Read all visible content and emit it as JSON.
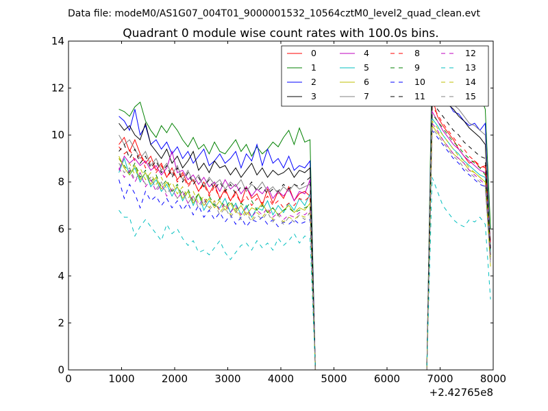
{
  "chart_data": {
    "type": "line",
    "suptitle": "Data file: modeM0/AS1G07_004T01_9000001532_10564cztM0_level2_quad_clean.evt",
    "title": "Quadrant 0 module wise count rates with 100.0s bins.",
    "xlabel": "",
    "ylabel": "",
    "xlim": [
      0,
      8000
    ],
    "ylim": [
      0,
      14
    ],
    "x_offset_label": "+2.42765e8",
    "xticks": [
      0,
      1000,
      2000,
      3000,
      4000,
      5000,
      6000,
      7000,
      8000
    ],
    "yticks": [
      0,
      2,
      4,
      6,
      8,
      10,
      12,
      14
    ],
    "grid": false,
    "legend": {
      "location": "top-right",
      "columns": 4
    },
    "x": [
      950,
      1050,
      1150,
      1250,
      1350,
      1450,
      1550,
      1650,
      1750,
      1850,
      1950,
      2050,
      2150,
      2250,
      2350,
      2450,
      2550,
      2650,
      2750,
      2850,
      2950,
      3050,
      3150,
      3250,
      3350,
      3450,
      3550,
      3650,
      3750,
      3850,
      3950,
      4050,
      4150,
      4250,
      4350,
      4450,
      4550,
      4650,
      4750,
      4850,
      4950,
      5050,
      5150,
      5250,
      5350,
      5450,
      5550,
      5650,
      5750,
      5850,
      5950,
      6050,
      6150,
      6250,
      6350,
      6450,
      6550,
      6650,
      6750,
      6850,
      6950,
      7050,
      7150,
      7250,
      7350,
      7450,
      7550,
      7650,
      7750,
      7850,
      7950
    ],
    "series": [
      {
        "name": "0",
        "color": "#ff0000",
        "style": "solid",
        "values": [
          9.6,
          9.9,
          9.3,
          9.8,
          9.2,
          8.8,
          9.1,
          8.5,
          8.8,
          8.2,
          8.6,
          8.1,
          8.4,
          7.9,
          8.1,
          7.6,
          8.0,
          7.5,
          7.9,
          7.3,
          7.7,
          7.2,
          7.6,
          7.1,
          7.8,
          7.3,
          7.5,
          7.0,
          7.7,
          7.1,
          7.6,
          7.3,
          7.8,
          7.2,
          7.5,
          7.6,
          7.4,
          0,
          0,
          0,
          0,
          0,
          0,
          0,
          0,
          0,
          0,
          0,
          0,
          0,
          0,
          0,
          0,
          0,
          0,
          0,
          0,
          0,
          0,
          11.6,
          10.8,
          10.4,
          10.1,
          9.8,
          9.4,
          9.1,
          8.8,
          8.9,
          8.6,
          8.7,
          5.5
        ]
      },
      {
        "name": "1",
        "color": "#008000",
        "style": "solid",
        "values": [
          11.1,
          11.0,
          10.8,
          11.2,
          11.4,
          10.6,
          10.2,
          9.9,
          10.4,
          10.1,
          10.5,
          10.2,
          9.8,
          9.5,
          9.9,
          9.4,
          9.6,
          9.2,
          9.7,
          9.3,
          9.2,
          9.5,
          9.8,
          9.3,
          9.6,
          9.1,
          9.5,
          9.2,
          9.4,
          9.7,
          9.5,
          9.9,
          10.2,
          9.6,
          10.3,
          9.7,
          9.8,
          0,
          0,
          0,
          0,
          0,
          0,
          0,
          0,
          0,
          0,
          0,
          0,
          0,
          0,
          0,
          0,
          0,
          0,
          0,
          0,
          0,
          0,
          13.6,
          13.0,
          12.6,
          12.3,
          12.1,
          12.0,
          11.8,
          11.6,
          11.5,
          11.7,
          11.1,
          6.0
        ]
      },
      {
        "name": "2",
        "color": "#0000ff",
        "style": "solid",
        "values": [
          10.8,
          10.6,
          10.2,
          11.1,
          10.0,
          10.4,
          9.6,
          9.8,
          9.4,
          9.7,
          9.2,
          9.5,
          9.0,
          9.3,
          8.8,
          9.1,
          9.4,
          8.7,
          8.9,
          9.2,
          8.8,
          9.0,
          9.3,
          8.6,
          9.2,
          8.9,
          9.6,
          8.7,
          9.4,
          8.8,
          9.0,
          8.6,
          9.1,
          8.5,
          8.7,
          8.6,
          8.9,
          0,
          0,
          0,
          0,
          0,
          0,
          0,
          0,
          0,
          0,
          0,
          0,
          0,
          0,
          0,
          0,
          0,
          0,
          0,
          0,
          0,
          0,
          12.6,
          13.0,
          11.6,
          11.4,
          11.0,
          10.9,
          10.6,
          10.4,
          10.5,
          10.2,
          10.5,
          5.2
        ]
      },
      {
        "name": "3",
        "color": "#000000",
        "style": "solid",
        "values": [
          10.5,
          10.2,
          10.4,
          10.0,
          9.8,
          10.5,
          9.6,
          9.3,
          9.0,
          9.4,
          8.8,
          9.1,
          8.6,
          8.9,
          9.3,
          8.5,
          8.8,
          8.4,
          8.9,
          8.6,
          8.7,
          8.3,
          8.6,
          8.2,
          8.5,
          8.8,
          8.3,
          8.6,
          8.2,
          8.5,
          8.3,
          8.4,
          8.6,
          8.2,
          8.5,
          8.4,
          8.6,
          0,
          0,
          0,
          0,
          0,
          0,
          0,
          0,
          0,
          0,
          0,
          0,
          0,
          0,
          0,
          0,
          0,
          0,
          0,
          0,
          0,
          0,
          11.3,
          11.8,
          11.5,
          11.3,
          11.1,
          10.8,
          10.6,
          10.3,
          10.1,
          9.9,
          9.6,
          4.9
        ]
      },
      {
        "name": "4",
        "color": "#bf00bf",
        "style": "solid",
        "values": [
          8.5,
          9.1,
          8.8,
          9.0,
          8.7,
          8.9,
          8.5,
          8.7,
          8.3,
          8.6,
          9.3,
          8.4,
          8.5,
          8.1,
          8.3,
          7.9,
          8.2,
          7.8,
          8.0,
          7.6,
          8.1,
          7.7,
          7.9,
          7.5,
          7.8,
          7.4,
          7.7,
          7.5,
          7.8,
          7.3,
          7.6,
          7.4,
          7.7,
          7.2,
          7.6,
          7.5,
          8.1,
          0,
          0,
          0,
          0,
          0,
          0,
          0,
          0,
          0,
          0,
          0,
          0,
          0,
          0,
          0,
          0,
          0,
          0,
          0,
          0,
          0,
          0,
          11.0,
          10.6,
          10.2,
          9.9,
          9.6,
          9.4,
          9.1,
          8.9,
          8.7,
          8.5,
          8.4,
          5.4
        ]
      },
      {
        "name": "5",
        "color": "#00bfbf",
        "style": "solid",
        "values": [
          8.4,
          9.0,
          8.3,
          8.6,
          8.0,
          8.4,
          7.8,
          8.1,
          7.6,
          7.9,
          7.4,
          7.8,
          7.2,
          7.6,
          7.0,
          7.5,
          6.8,
          7.2,
          7.0,
          6.9,
          7.3,
          6.7,
          7.1,
          6.6,
          7.0,
          6.5,
          6.9,
          6.8,
          7.2,
          6.6,
          7.0,
          6.7,
          7.1,
          6.8,
          7.3,
          7.0,
          7.5,
          0,
          0,
          0,
          0,
          0,
          0,
          0,
          0,
          0,
          0,
          0,
          0,
          0,
          0,
          0,
          0,
          0,
          0,
          0,
          0,
          0,
          0,
          10.7,
          10.4,
          10.0,
          9.7,
          9.4,
          9.2,
          8.9,
          8.7,
          8.5,
          8.3,
          8.2,
          5.0
        ]
      },
      {
        "name": "6",
        "color": "#bfbf00",
        "style": "solid",
        "values": [
          9.1,
          8.6,
          8.3,
          8.7,
          8.1,
          8.4,
          7.9,
          8.2,
          7.7,
          8.0,
          7.6,
          7.8,
          7.3,
          7.6,
          7.1,
          7.5,
          7.0,
          7.3,
          6.9,
          7.2,
          6.8,
          7.1,
          6.7,
          7.0,
          6.6,
          6.9,
          6.8,
          7.1,
          6.7,
          6.9,
          6.6,
          6.8,
          7.0,
          6.7,
          6.9,
          6.8,
          7.1,
          0,
          0,
          0,
          0,
          0,
          0,
          0,
          0,
          0,
          0,
          0,
          0,
          0,
          0,
          0,
          0,
          0,
          0,
          0,
          0,
          0,
          0,
          10.4,
          10.1,
          9.8,
          9.5,
          9.2,
          9.0,
          8.8,
          8.5,
          8.4,
          8.2,
          8.0,
          4.8
        ]
      },
      {
        "name": "7",
        "color": "#808080",
        "style": "solid",
        "values": [
          10.0,
          9.6,
          9.8,
          9.4,
          9.0,
          9.3,
          8.7,
          9.0,
          8.5,
          8.8,
          8.3,
          8.7,
          8.1,
          8.5,
          8.0,
          8.3,
          7.8,
          8.2,
          7.9,
          8.1,
          7.7,
          8.0,
          7.8,
          8.1,
          7.6,
          7.9,
          7.7,
          8.0,
          7.6,
          7.8,
          7.5,
          7.8,
          7.6,
          7.9,
          7.7,
          7.8,
          7.9,
          0,
          0,
          0,
          0,
          0,
          0,
          0,
          0,
          0,
          0,
          0,
          0,
          0,
          0,
          0,
          0,
          0,
          0,
          0,
          0,
          0,
          0,
          12.4,
          12.8,
          12.0,
          11.6,
          11.3,
          11.1,
          10.8,
          10.5,
          10.4,
          10.2,
          10.0,
          5.3
        ]
      },
      {
        "name": "8",
        "color": "#ff0000",
        "style": "dashed",
        "values": [
          9.5,
          9.2,
          9.4,
          8.9,
          9.2,
          8.6,
          8.9,
          8.4,
          8.7,
          8.2,
          8.5,
          8.0,
          8.3,
          7.8,
          8.1,
          7.6,
          7.9,
          7.4,
          7.8,
          7.3,
          7.6,
          7.2,
          7.5,
          7.1,
          7.4,
          7.0,
          7.3,
          7.1,
          7.4,
          7.0,
          7.2,
          6.9,
          7.1,
          7.0,
          7.3,
          7.2,
          7.4,
          0,
          0,
          0,
          0,
          0,
          0,
          0,
          0,
          0,
          0,
          0,
          0,
          0,
          0,
          0,
          0,
          0,
          0,
          0,
          0,
          0,
          0,
          11.2,
          10.9,
          10.5,
          10.2,
          9.9,
          9.6,
          9.4,
          9.1,
          8.9,
          8.7,
          8.6,
          5.2
        ]
      },
      {
        "name": "9",
        "color": "#008000",
        "style": "dashed",
        "values": [
          9.0,
          8.7,
          8.4,
          8.8,
          8.2,
          8.5,
          8.0,
          8.3,
          7.8,
          8.1,
          7.6,
          7.9,
          7.4,
          7.7,
          7.2,
          7.5,
          7.1,
          7.4,
          7.0,
          7.3,
          6.9,
          7.2,
          6.8,
          7.1,
          6.9,
          7.2,
          6.8,
          7.0,
          6.7,
          6.9,
          6.6,
          6.8,
          6.9,
          6.7,
          6.8,
          6.9,
          7.0,
          0,
          0,
          0,
          0,
          0,
          0,
          0,
          0,
          0,
          0,
          0,
          0,
          0,
          0,
          0,
          0,
          0,
          0,
          0,
          0,
          0,
          0,
          10.9,
          10.6,
          10.3,
          10.0,
          9.7,
          9.5,
          9.2,
          9.0,
          8.8,
          8.6,
          8.3,
          4.9
        ]
      },
      {
        "name": "10",
        "color": "#0000ff",
        "style": "dashed",
        "values": [
          8.1,
          7.3,
          7.9,
          7.5,
          6.9,
          7.6,
          7.2,
          7.4,
          7.0,
          7.3,
          6.9,
          7.2,
          6.8,
          7.1,
          6.6,
          7.0,
          6.5,
          6.8,
          6.4,
          6.7,
          6.3,
          6.6,
          6.2,
          6.5,
          6.1,
          6.4,
          6.3,
          6.5,
          6.2,
          6.4,
          6.1,
          6.3,
          6.2,
          6.4,
          6.2,
          6.3,
          6.4,
          0,
          0,
          0,
          0,
          0,
          0,
          0,
          0,
          0,
          0,
          0,
          0,
          0,
          0,
          0,
          0,
          0,
          0,
          0,
          0,
          0,
          0,
          10.2,
          9.9,
          9.6,
          9.3,
          9.0,
          8.8,
          8.5,
          8.3,
          8.1,
          7.9,
          7.8,
          4.6
        ]
      },
      {
        "name": "11",
        "color": "#000000",
        "style": "dashed",
        "values": [
          9.3,
          9.6,
          9.0,
          9.4,
          8.8,
          9.1,
          8.6,
          8.9,
          8.4,
          8.7,
          8.2,
          8.6,
          8.0,
          8.4,
          7.9,
          8.2,
          7.8,
          8.1,
          7.7,
          8.0,
          7.6,
          7.9,
          7.5,
          7.8,
          7.7,
          8.0,
          7.6,
          7.8,
          7.5,
          7.7,
          7.6,
          7.9,
          7.7,
          7.9,
          7.8,
          8.0,
          8.2,
          0,
          0,
          0,
          0,
          0,
          0,
          0,
          0,
          0,
          0,
          0,
          0,
          0,
          0,
          0,
          0,
          0,
          0,
          0,
          0,
          0,
          0,
          11.4,
          11.1,
          10.8,
          10.5,
          10.2,
          10.0,
          9.7,
          9.5,
          9.3,
          9.1,
          9.0,
          5.1
        ]
      },
      {
        "name": "12",
        "color": "#bf00bf",
        "style": "dashed",
        "values": [
          8.6,
          8.2,
          8.5,
          8.0,
          8.4,
          7.8,
          8.1,
          7.6,
          7.9,
          7.4,
          7.7,
          7.3,
          7.6,
          7.1,
          7.4,
          7.0,
          7.3,
          6.9,
          7.2,
          6.8,
          7.1,
          6.7,
          7.0,
          6.6,
          6.9,
          6.5,
          6.8,
          6.6,
          6.9,
          6.5,
          6.7,
          6.4,
          6.6,
          6.5,
          6.7,
          6.6,
          6.8,
          0,
          0,
          0,
          0,
          0,
          0,
          0,
          0,
          0,
          0,
          0,
          0,
          0,
          0,
          0,
          0,
          0,
          0,
          0,
          0,
          0,
          0,
          10.5,
          10.2,
          9.8,
          9.5,
          9.2,
          9.0,
          8.8,
          8.5,
          8.3,
          8.1,
          7.9,
          4.7
        ]
      },
      {
        "name": "13",
        "color": "#00bfbf",
        "style": "dashed",
        "values": [
          6.8,
          6.5,
          6.5,
          5.7,
          6.1,
          6.4,
          6.1,
          5.8,
          5.5,
          6.2,
          5.8,
          6.0,
          5.6,
          5.3,
          5.5,
          5.0,
          5.1,
          4.9,
          5.2,
          5.5,
          5.0,
          4.7,
          5.0,
          5.3,
          5.4,
          5.1,
          5.5,
          5.2,
          5.4,
          5.1,
          5.6,
          5.3,
          5.5,
          5.8,
          5.4,
          5.7,
          5.6,
          0,
          0,
          0,
          0,
          0,
          0,
          0,
          0,
          0,
          0,
          0,
          0,
          0,
          0,
          0,
          0,
          0,
          0,
          0,
          0,
          0,
          0,
          8.2,
          7.6,
          7.0,
          6.7,
          6.4,
          6.2,
          6.1,
          6.4,
          6.3,
          6.5,
          6.2,
          3.0
        ]
      },
      {
        "name": "14",
        "color": "#bfbf00",
        "style": "dashed",
        "values": [
          9.0,
          8.6,
          8.8,
          8.3,
          8.6,
          8.1,
          8.4,
          7.9,
          8.2,
          7.7,
          8.0,
          7.5,
          7.8,
          7.3,
          7.6,
          7.1,
          7.4,
          6.9,
          7.2,
          6.7,
          7.0,
          6.6,
          6.9,
          6.5,
          6.8,
          6.4,
          6.7,
          6.5,
          6.8,
          6.4,
          6.6,
          6.3,
          6.5,
          6.4,
          6.6,
          6.5,
          6.7,
          0,
          0,
          0,
          0,
          0,
          0,
          0,
          0,
          0,
          0,
          0,
          0,
          0,
          0,
          0,
          0,
          0,
          0,
          0,
          0,
          0,
          0,
          10.6,
          10.3,
          10.0,
          9.7,
          9.4,
          9.1,
          8.9,
          8.6,
          8.4,
          8.2,
          8.0,
          4.4
        ]
      },
      {
        "name": "15",
        "color": "#808080",
        "style": "dashed",
        "values": [
          8.8,
          8.4,
          8.6,
          8.1,
          8.4,
          7.9,
          8.2,
          7.7,
          8.0,
          7.5,
          7.8,
          7.3,
          7.6,
          7.1,
          7.4,
          6.9,
          7.2,
          6.8,
          7.1,
          6.6,
          6.9,
          6.5,
          6.8,
          6.4,
          6.7,
          6.3,
          6.6,
          6.4,
          6.7,
          6.3,
          6.6,
          6.2,
          6.5,
          6.3,
          6.6,
          6.4,
          6.7,
          0,
          0,
          0,
          0,
          0,
          0,
          0,
          0,
          0,
          0,
          0,
          0,
          0,
          0,
          0,
          0,
          0,
          0,
          0,
          0,
          0,
          0,
          10.3,
          10.0,
          9.7,
          9.4,
          9.1,
          8.9,
          8.6,
          8.4,
          8.2,
          8.0,
          7.8,
          4.5
        ]
      }
    ]
  }
}
